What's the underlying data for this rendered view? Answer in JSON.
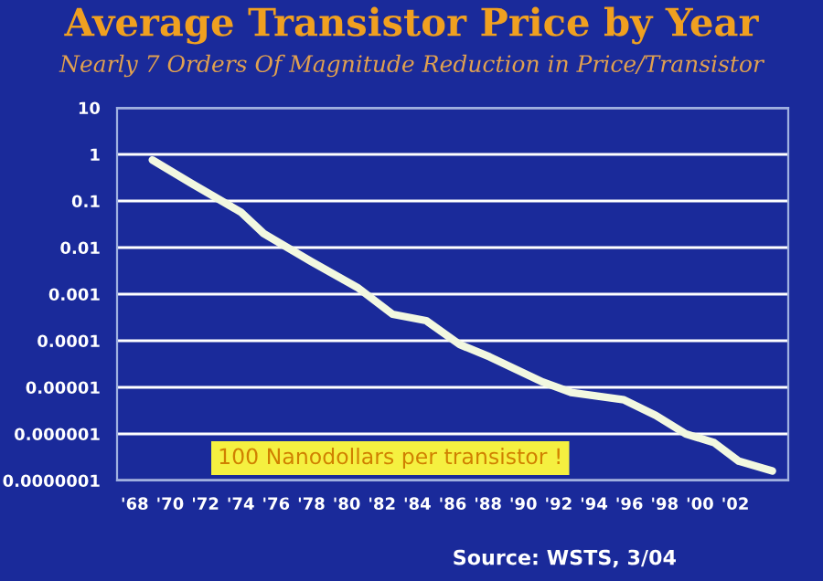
{
  "chart_data": {
    "type": "line",
    "title": "Average Transistor Price by Year",
    "subtitle": "Nearly 7 Orders Of Magnitude Reduction in Price/Transistor",
    "annotations": [
      "100 Nanodollars per transistor !",
      "Source: WSTS, 3/04"
    ],
    "series": [
      {
        "color": "#f2f8e0",
        "x": [
          1969,
          1971.2,
          1974,
          1975.3,
          1978,
          1980.6,
          1982.6,
          1984.5,
          1986.4,
          1988.1,
          1991.1,
          1992.7,
          1995.7,
          1997.5,
          1999.2,
          2000.8,
          2002.2,
          2004.1
        ],
        "values": [
          0.76,
          0.24,
          0.058,
          0.02,
          0.005,
          0.0014,
          0.00037,
          0.00027,
          8.3e-05,
          4.5e-05,
          1.3e-05,
          7.8e-06,
          5.4e-06,
          2.5e-06,
          1e-06,
          6.5e-07,
          2.6e-07,
          1.6e-07
        ]
      }
    ],
    "log": "y",
    "grid": "y",
    "marker": "none",
    "line_style": "solid",
    "xlim": [
      1967,
      2005
    ],
    "ylim": [
      1e-07,
      10
    ],
    "xticks": [
      {
        "value": 1968,
        "label": "'68"
      },
      {
        "value": 1970,
        "label": "'70"
      },
      {
        "value": 1972,
        "label": "'72"
      },
      {
        "value": 1974,
        "label": "'74"
      },
      {
        "value": 1976,
        "label": "'76"
      },
      {
        "value": 1978,
        "label": "'78"
      },
      {
        "value": 1980,
        "label": "'80"
      },
      {
        "value": 1982,
        "label": "'82"
      },
      {
        "value": 1984,
        "label": "'84"
      },
      {
        "value": 1986,
        "label": "'86"
      },
      {
        "value": 1988,
        "label": "'88"
      },
      {
        "value": 1990,
        "label": "'90"
      },
      {
        "value": 1992,
        "label": "'92"
      },
      {
        "value": 1994,
        "label": "'94"
      },
      {
        "value": 1996,
        "label": "'96"
      },
      {
        "value": 1998,
        "label": "'98"
      },
      {
        "value": 2000,
        "label": "'00"
      },
      {
        "value": 2002,
        "label": "'02"
      }
    ],
    "yticks": [
      {
        "value": 1e-07,
        "label": "0.0000001"
      },
      {
        "value": 1e-06,
        "label": "0.000001"
      },
      {
        "value": 1e-05,
        "label": "0.00001"
      },
      {
        "value": 0.0001,
        "label": "0.0001"
      },
      {
        "value": 0.001,
        "label": "0.001"
      },
      {
        "value": 0.01,
        "label": "0.01"
      },
      {
        "value": 0.1,
        "label": "0.1"
      },
      {
        "value": 1,
        "label": "1"
      },
      {
        "value": 10,
        "label": "10"
      }
    ]
  }
}
